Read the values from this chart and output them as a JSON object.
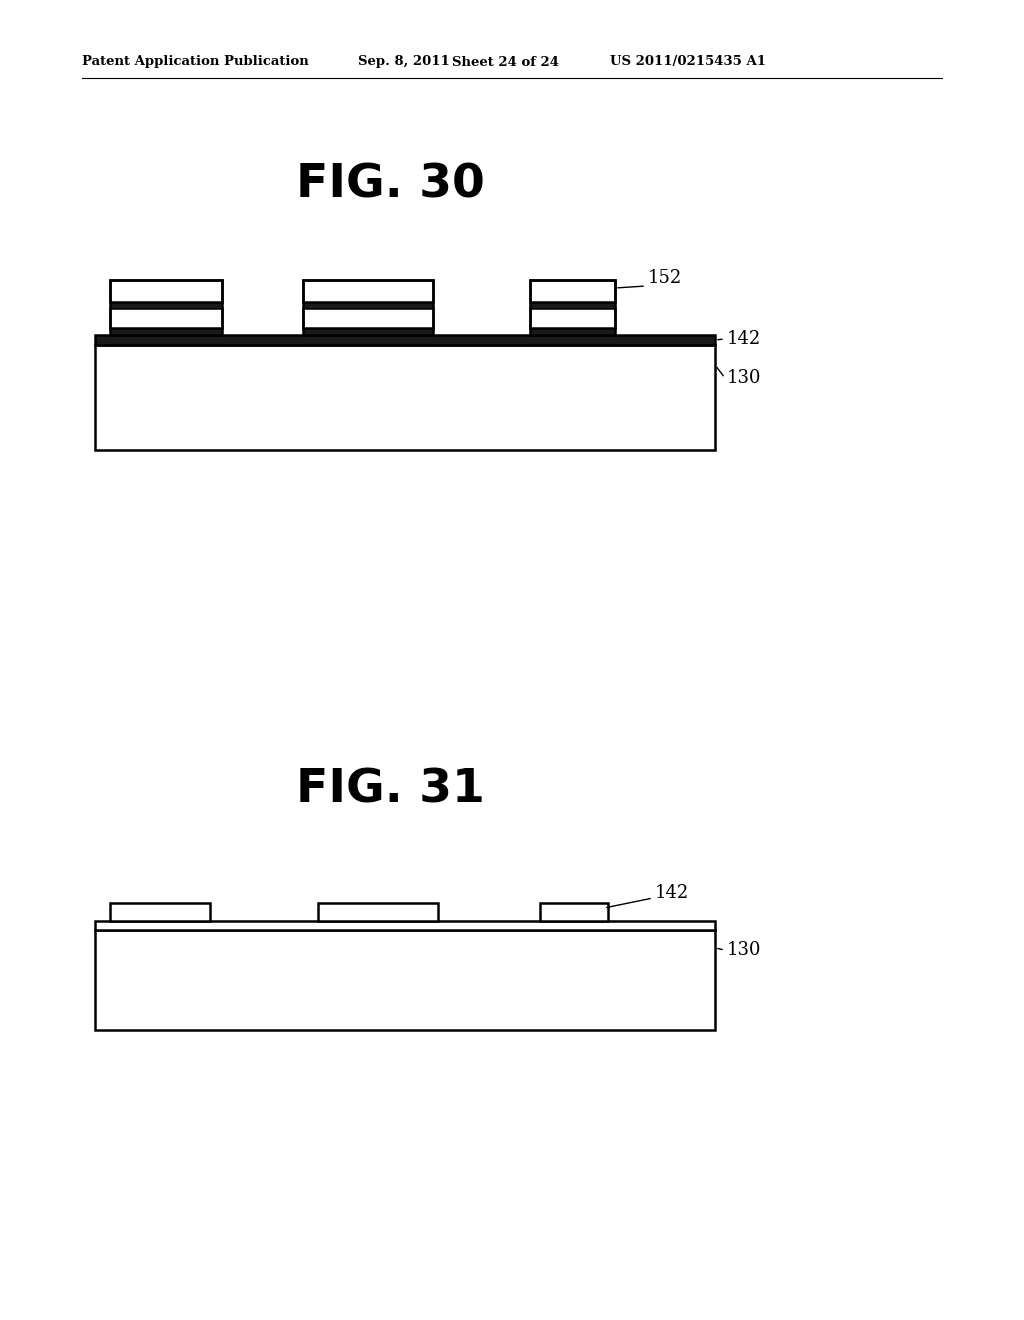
{
  "background_color": "#ffffff",
  "header_text": "Patent Application Publication",
  "header_date": "Sep. 8, 2011",
  "header_sheet": "Sheet 24 of 24",
  "header_patent": "US 2011/0215435 A1",
  "fig30_title": "FIG. 30",
  "fig31_title": "FIG. 31",
  "line_color": "#000000",
  "fill_color": "#ffffff",
  "dark_fill": "#1a1a1a",
  "lw": 1.8
}
